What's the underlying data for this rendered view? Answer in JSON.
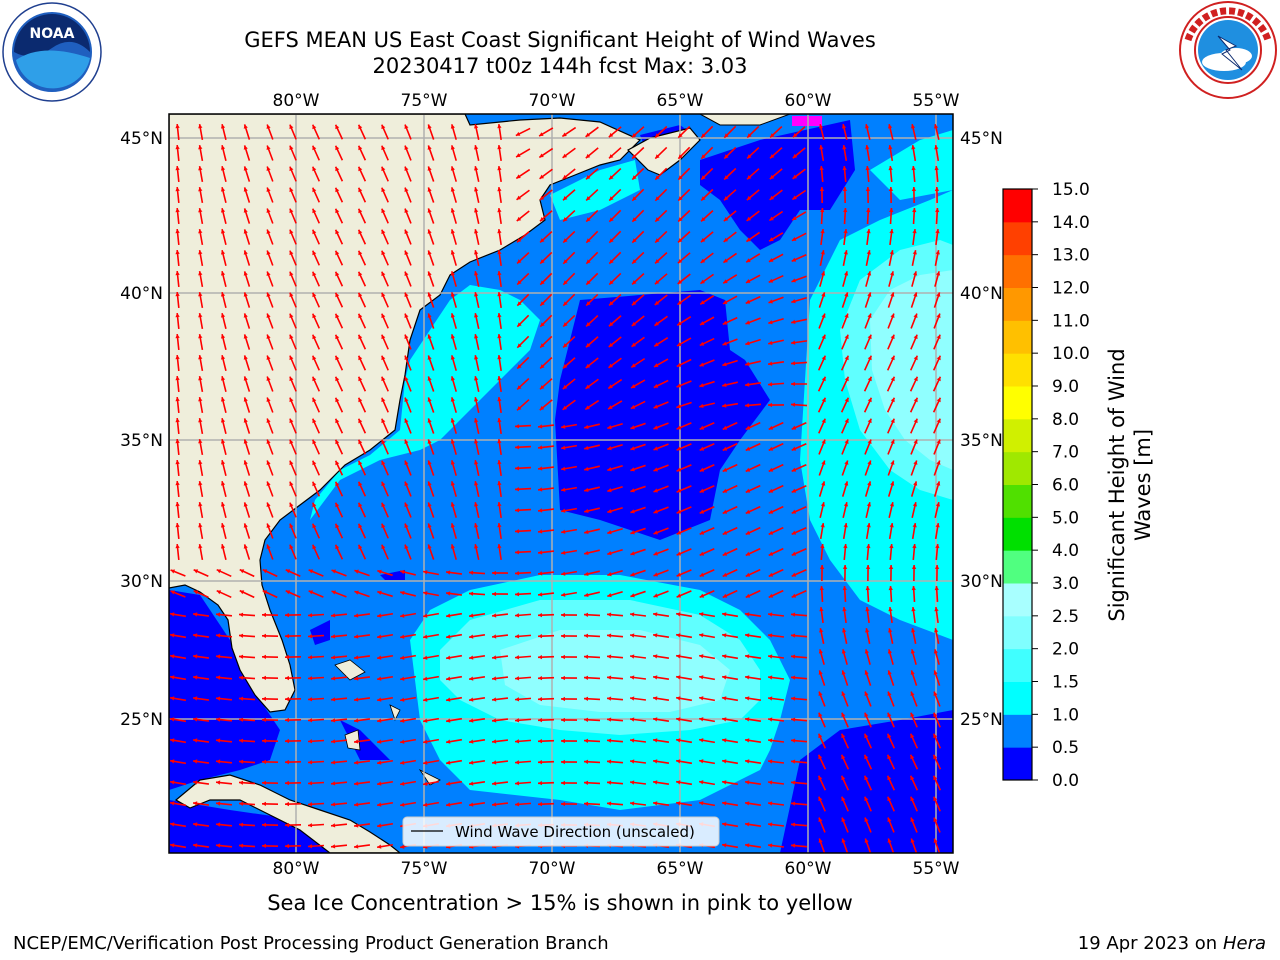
{
  "header": {
    "title_line1": "GEFS MEAN US East Coast Significant Height of Wind Waves",
    "title_line2": "20230417 t00z 144h fcst   Max: 3.03"
  },
  "logos": {
    "left": {
      "name": "NOAA",
      "ring_text": "NATIONAL OCEANIC AND ATMOSPHERIC ADMINISTRATION · U.S. DEPARTMENT OF COMMERCE"
    },
    "right": {
      "name": "NATIONAL WEATHER SERVICE"
    }
  },
  "map": {
    "lon_labels": [
      "80°W",
      "75°W",
      "70°W",
      "65°W",
      "60°W",
      "55°W"
    ],
    "lat_labels": [
      "45°N",
      "40°N",
      "35°N",
      "30°N",
      "25°N"
    ],
    "legend_label": "Wind Wave Direction (unscaled)",
    "colors": {
      "land": "#efeedb",
      "grid": "#b0b0b0",
      "arrow": "#ff0000"
    }
  },
  "colorbar": {
    "label": "Significant Height of Wind Waves [m]",
    "label_line1": "Significant Height of Wind",
    "label_line2": "Waves [m]",
    "levels": [
      "0.0",
      "0.5",
      "1.0",
      "1.5",
      "2.0",
      "2.5",
      "3.0",
      "4.0",
      "5.0",
      "6.0",
      "7.0",
      "8.0",
      "9.0",
      "10.0",
      "11.0",
      "12.0",
      "13.0",
      "14.0",
      "15.0"
    ],
    "colors": [
      "#0000ff",
      "#0080ff",
      "#00ffff",
      "#40ffff",
      "#80ffff",
      "#a8ffff",
      "#50ff80",
      "#00e000",
      "#50e000",
      "#a0e800",
      "#d0f000",
      "#ffff00",
      "#ffe000",
      "#ffc000",
      "#ff9800",
      "#ff7000",
      "#ff4000",
      "#ff0000"
    ]
  },
  "footer": {
    "caption": "Sea Ice Concentration > 15% is shown in pink to yellow",
    "credit": "NCEP/EMC/Verification Post Processing Product Generation Branch",
    "date": "19 Apr 2023 on",
    "machine": "Hera"
  }
}
